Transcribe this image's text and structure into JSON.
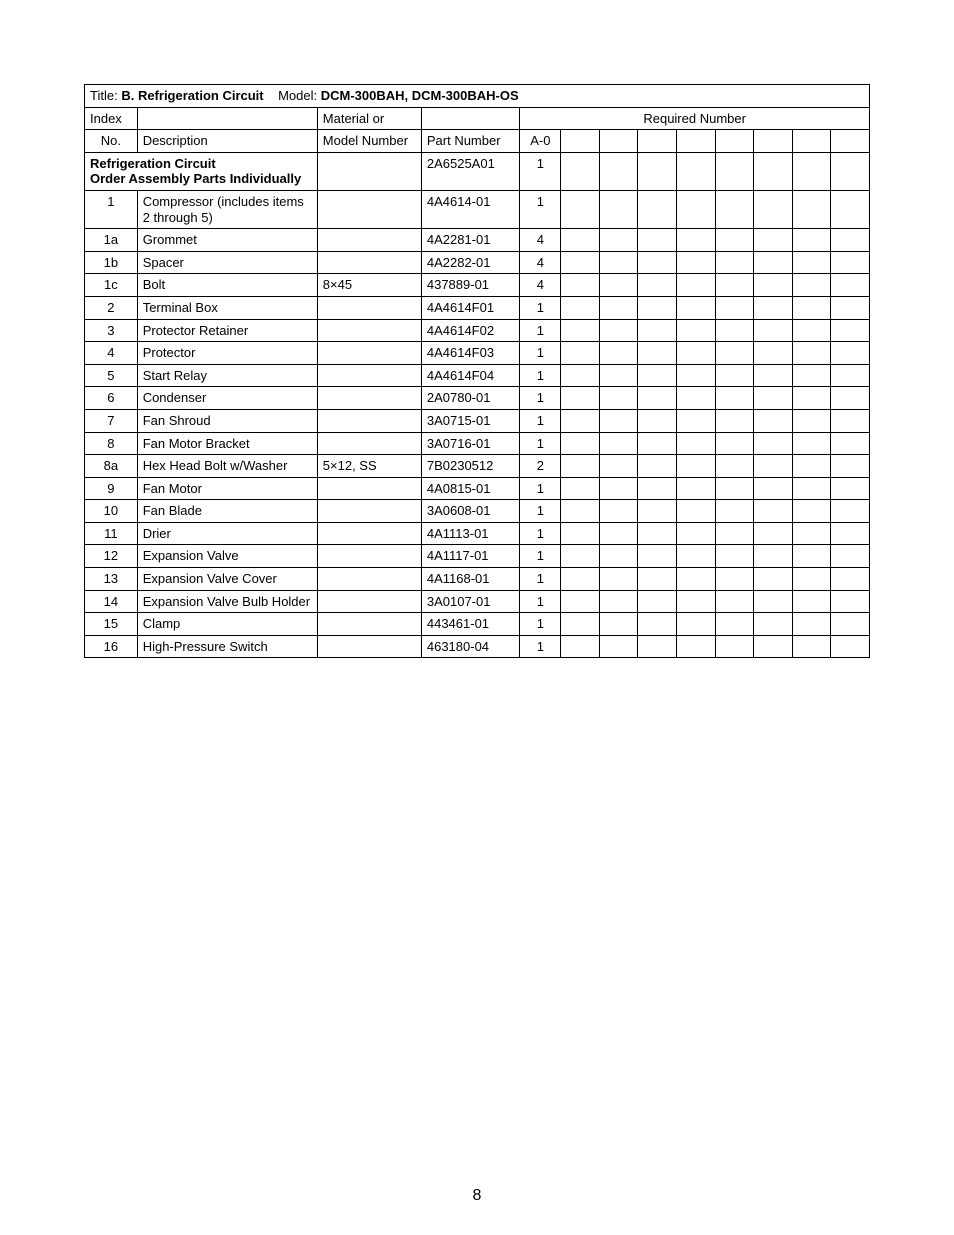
{
  "page_number": "8",
  "title_label": "Title:",
  "title_bold": "B. Refrigeration Circuit",
  "model_label": "Model:",
  "model_bold": "DCM-300BAH, DCM-300BAH-OS",
  "headers": {
    "index_top": "Index",
    "index_bottom": "No.",
    "description": "Description",
    "material_top": "Material or",
    "material_bottom": "Model Number",
    "part_number": "Part Number",
    "required_number": "Required Number",
    "a0": "A-0"
  },
  "assembly_row": {
    "description_line1": "Refrigeration Circuit",
    "description_line2": "Order Assembly Parts Individually",
    "part_number": "2A6525A01",
    "a0": "1"
  },
  "rows": [
    {
      "index": "1",
      "description": "Compressor (includes items 2 through 5)",
      "material": "",
      "part_number": "4A4614-01",
      "a0": "1"
    },
    {
      "index": "1a",
      "description": "Grommet",
      "material": "",
      "part_number": "4A2281-01",
      "a0": "4"
    },
    {
      "index": "1b",
      "description": "Spacer",
      "material": "",
      "part_number": "4A2282-01",
      "a0": "4"
    },
    {
      "index": "1c",
      "description": "Bolt",
      "material": "8×45",
      "part_number": "437889-01",
      "a0": "4"
    },
    {
      "index": "2",
      "description": "Terminal Box",
      "material": "",
      "part_number": "4A4614F01",
      "a0": "1"
    },
    {
      "index": "3",
      "description": "Protector Retainer",
      "material": "",
      "part_number": "4A4614F02",
      "a0": "1"
    },
    {
      "index": "4",
      "description": "Protector",
      "material": "",
      "part_number": "4A4614F03",
      "a0": "1"
    },
    {
      "index": "5",
      "description": "Start Relay",
      "material": "",
      "part_number": "4A4614F04",
      "a0": "1"
    },
    {
      "index": "6",
      "description": "Condenser",
      "material": "",
      "part_number": "2A0780-01",
      "a0": "1"
    },
    {
      "index": "7",
      "description": "Fan Shroud",
      "material": "",
      "part_number": "3A0715-01",
      "a0": "1"
    },
    {
      "index": "8",
      "description": "Fan Motor Bracket",
      "material": "",
      "part_number": "3A0716-01",
      "a0": "1"
    },
    {
      "index": "8a",
      "description": "Hex Head Bolt w/Washer",
      "material": "5×12, SS",
      "part_number": "7B0230512",
      "a0": "2"
    },
    {
      "index": "9",
      "description": "Fan Motor",
      "material": "",
      "part_number": "4A0815-01",
      "a0": "1"
    },
    {
      "index": "10",
      "description": "Fan Blade",
      "material": "",
      "part_number": "3A0608-01",
      "a0": "1"
    },
    {
      "index": "11",
      "description": "Drier",
      "material": "",
      "part_number": "4A1113-01",
      "a0": "1"
    },
    {
      "index": "12",
      "description": "Expansion Valve",
      "material": "",
      "part_number": "4A1117-01",
      "a0": "1"
    },
    {
      "index": "13",
      "description": "Expansion Valve Cover",
      "material": "",
      "part_number": "4A1168-01",
      "a0": "1"
    },
    {
      "index": "14",
      "description": "Expansion Valve Bulb Holder",
      "material": "",
      "part_number": "3A0107-01",
      "a0": "1"
    },
    {
      "index": "15",
      "description": "Clamp",
      "material": "",
      "part_number": "443461-01",
      "a0": "1"
    },
    {
      "index": "16",
      "description": "High-Pressure Switch",
      "material": "",
      "part_number": "463180-04",
      "a0": "1"
    }
  ],
  "blank_rn_columns": 8
}
